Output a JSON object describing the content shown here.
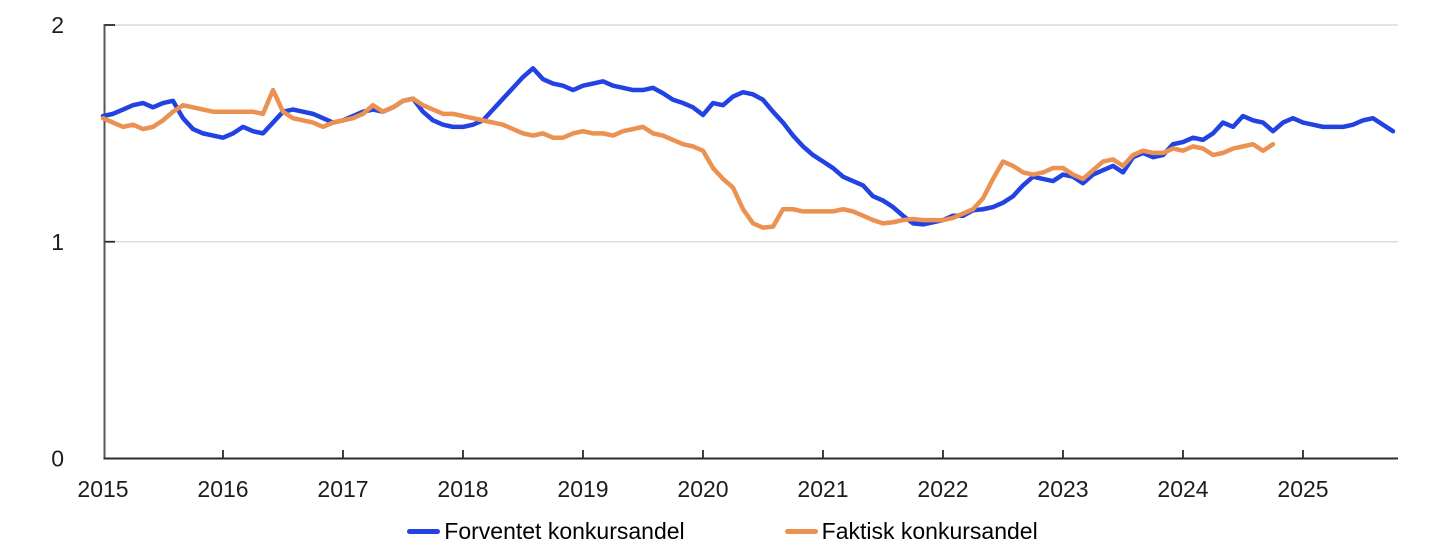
{
  "chart_data": {
    "type": "line",
    "title": "",
    "frequency": "monthly",
    "x_start": "2015-01",
    "x_tick_labels": [
      "2015",
      "2016",
      "2017",
      "2018",
      "2019",
      "2020",
      "2021",
      "2022",
      "2023",
      "2024",
      "2025"
    ],
    "y_ticks": [
      0,
      1,
      2
    ],
    "y_tick_labels": [
      "0",
      "1",
      "2"
    ],
    "ylim": [
      0,
      2
    ],
    "grid_y_values": [
      1,
      2
    ],
    "legend_position": "bottom-center",
    "series": [
      {
        "name": "Forventet konkursandel",
        "color": "#2342E2",
        "x_end": "2025-10",
        "values": [
          1.58,
          1.59,
          1.61,
          1.63,
          1.64,
          1.62,
          1.64,
          1.65,
          1.57,
          1.52,
          1.5,
          1.49,
          1.48,
          1.5,
          1.53,
          1.51,
          1.5,
          1.55,
          1.6,
          1.61,
          1.6,
          1.59,
          1.57,
          1.55,
          1.56,
          1.58,
          1.6,
          1.61,
          1.6,
          1.62,
          1.65,
          1.66,
          1.6,
          1.56,
          1.54,
          1.53,
          1.53,
          1.54,
          1.56,
          1.61,
          1.66,
          1.71,
          1.76,
          1.8,
          1.75,
          1.73,
          1.72,
          1.7,
          1.72,
          1.73,
          1.74,
          1.72,
          1.71,
          1.7,
          1.7,
          1.71,
          1.685,
          1.655,
          1.64,
          1.62,
          1.585,
          1.64,
          1.63,
          1.67,
          1.69,
          1.68,
          1.655,
          1.6,
          1.55,
          1.49,
          1.44,
          1.4,
          1.37,
          1.34,
          1.3,
          1.28,
          1.26,
          1.21,
          1.19,
          1.16,
          1.12,
          1.085,
          1.08,
          1.09,
          1.1,
          1.12,
          1.12,
          1.145,
          1.15,
          1.16,
          1.18,
          1.21,
          1.26,
          1.3,
          1.29,
          1.28,
          1.31,
          1.3,
          1.27,
          1.31,
          1.33,
          1.35,
          1.32,
          1.39,
          1.41,
          1.39,
          1.4,
          1.45,
          1.46,
          1.48,
          1.47,
          1.5,
          1.55,
          1.53,
          1.58,
          1.56,
          1.55,
          1.51,
          1.55,
          1.57,
          1.55,
          1.54,
          1.53,
          1.53,
          1.53,
          1.54,
          1.56,
          1.57,
          1.54,
          1.51
        ]
      },
      {
        "name": "Faktisk konkursandel",
        "color": "#EB9152",
        "x_end": "2024-10",
        "values": [
          1.57,
          1.55,
          1.53,
          1.54,
          1.52,
          1.53,
          1.56,
          1.6,
          1.63,
          1.62,
          1.61,
          1.6,
          1.6,
          1.6,
          1.6,
          1.6,
          1.59,
          1.7,
          1.6,
          1.57,
          1.56,
          1.55,
          1.53,
          1.55,
          1.56,
          1.57,
          1.59,
          1.63,
          1.6,
          1.62,
          1.65,
          1.66,
          1.63,
          1.61,
          1.59,
          1.59,
          1.58,
          1.57,
          1.56,
          1.55,
          1.54,
          1.52,
          1.5,
          1.49,
          1.5,
          1.48,
          1.48,
          1.5,
          1.51,
          1.5,
          1.5,
          1.49,
          1.51,
          1.52,
          1.53,
          1.5,
          1.49,
          1.47,
          1.45,
          1.44,
          1.42,
          1.34,
          1.29,
          1.25,
          1.15,
          1.085,
          1.065,
          1.07,
          1.15,
          1.15,
          1.14,
          1.14,
          1.14,
          1.14,
          1.15,
          1.14,
          1.12,
          1.1,
          1.085,
          1.09,
          1.1,
          1.105,
          1.1,
          1.1,
          1.1,
          1.11,
          1.13,
          1.15,
          1.2,
          1.29,
          1.37,
          1.35,
          1.32,
          1.31,
          1.32,
          1.34,
          1.34,
          1.31,
          1.29,
          1.33,
          1.37,
          1.38,
          1.35,
          1.4,
          1.42,
          1.41,
          1.41,
          1.43,
          1.42,
          1.44,
          1.43,
          1.4,
          1.41,
          1.43,
          1.44,
          1.45,
          1.42,
          1.45
        ]
      }
    ]
  },
  "colors": {
    "background": "#FFFFFF",
    "grid": "#DCDCDC",
    "axis_left": "#55565A",
    "axis_bottom": "#2B2B2E",
    "tick": "#2B2B2E",
    "text": "#1D1D1F"
  }
}
